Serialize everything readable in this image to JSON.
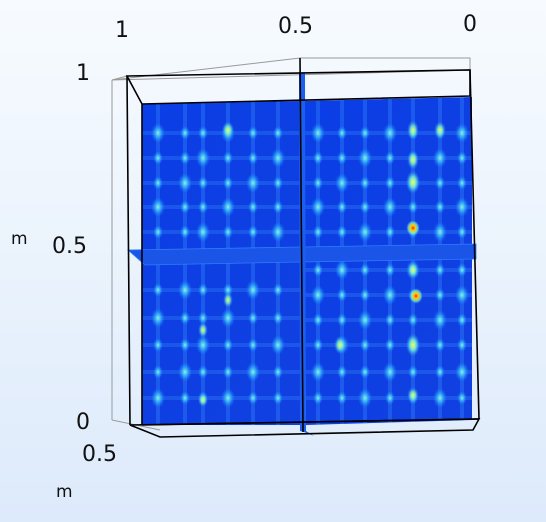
{
  "axes": {
    "top_ticks": [
      "1",
      "0.5",
      "0"
    ],
    "left_ticks": [
      "1",
      "0.5",
      "0"
    ],
    "left_unit": "m",
    "depth_tick": "0.5",
    "depth_unit": "m"
  },
  "colors": {
    "background_top": "#f7fbff",
    "background_bottom": "#ddeafb",
    "field_base": "#0a3ee6",
    "field_mid": "#1e7cff",
    "field_high": "#7ff2d0",
    "field_peak": "#ff2a00",
    "bounding_box": "#000000",
    "bounding_box_back": "#9a9a9a"
  },
  "plot": {
    "type": "3D slice plot",
    "colormap": "rainbow"
  }
}
